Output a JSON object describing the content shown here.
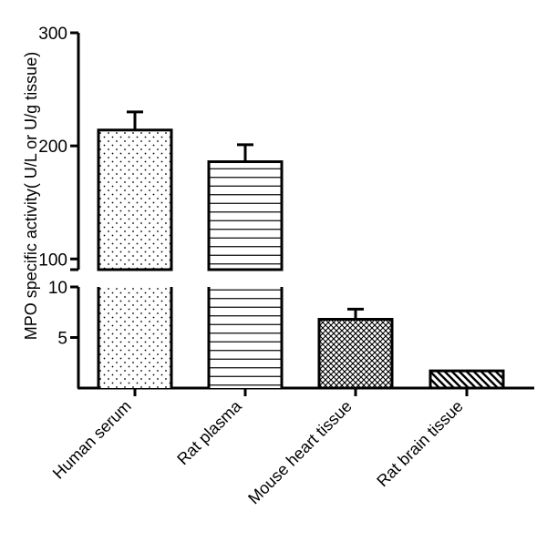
{
  "chart_data": {
    "type": "bar",
    "title": "",
    "xlabel": "",
    "ylabel": "MPO specific activity( U/L or U/g tissue)",
    "broken_axis": true,
    "ylim_lower": [
      0,
      10
    ],
    "ylim_upper": [
      10,
      300
    ],
    "yticks_lower": [
      "5",
      "10"
    ],
    "yticks_upper": [
      "100",
      "200",
      "300"
    ],
    "grid": false,
    "categories": [
      "Human serum",
      "Rat plasma",
      "Mouse heart tissue",
      "Rat brain tissue"
    ],
    "values": [
      214,
      186,
      6.8,
      1.7
    ],
    "errors": [
      16,
      15,
      1.0,
      0
    ],
    "patterns": [
      "dots",
      "horizontal-lines",
      "crosshatch",
      "diagonal-stripes"
    ],
    "colors": {
      "axis": "#000000",
      "fill": "#ffffff",
      "pattern": "#000000"
    }
  }
}
